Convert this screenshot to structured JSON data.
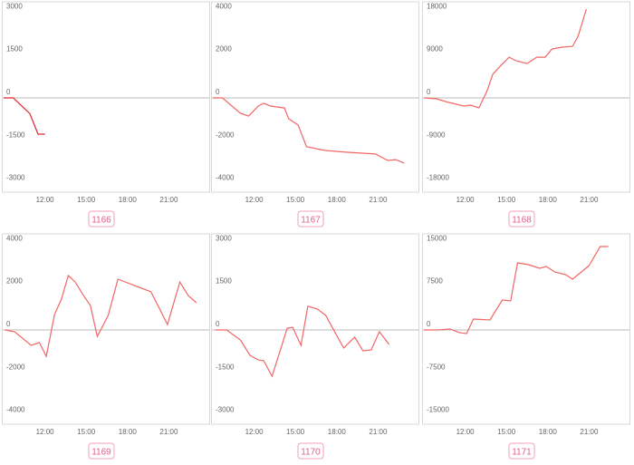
{
  "chart_data": [
    {
      "type": "line",
      "title": "1166",
      "color": "#e0262d",
      "x": [
        9,
        9.7,
        10.9,
        11.5,
        12
      ],
      "values": [
        0,
        0,
        -550,
        -1270,
        -1270
      ],
      "xlim": [
        9,
        24
      ],
      "ylim": [
        -3300,
        3300
      ],
      "xticks": [
        {
          "value": 12,
          "label": "12:00"
        },
        {
          "value": 15,
          "label": "15:00"
        },
        {
          "value": 18,
          "label": "18:00"
        },
        {
          "value": 21,
          "label": "21:00"
        }
      ],
      "yticks": [
        3000,
        1500,
        0,
        -1500,
        -3000
      ],
      "zero_line": true
    },
    {
      "type": "line",
      "title": "1167",
      "color": "#f26666",
      "x": [
        9,
        9.7,
        11,
        11.6,
        12.3,
        12.7,
        13.2,
        14.2,
        14.5,
        15.2,
        15.8,
        17.1,
        18.8,
        20.8,
        21.7,
        22.3,
        22.9
      ],
      "values": [
        0,
        0,
        -720,
        -850,
        -380,
        -250,
        -380,
        -470,
        -970,
        -1270,
        -2280,
        -2450,
        -2540,
        -2620,
        -2920,
        -2880,
        -3050
      ],
      "xlim": [
        9,
        24
      ],
      "ylim": [
        -4400,
        4400
      ],
      "xticks": [
        {
          "value": 12,
          "label": "12:00"
        },
        {
          "value": 15,
          "label": "15:00"
        },
        {
          "value": 18,
          "label": "18:00"
        },
        {
          "value": 21,
          "label": "21:00"
        }
      ],
      "yticks": [
        4000,
        2000,
        0,
        -2000,
        -4000
      ],
      "zero_line": true
    },
    {
      "type": "line",
      "title": "1168",
      "color": "#f26666",
      "x": [
        9,
        9.9,
        10.8,
        11.9,
        12.4,
        13,
        13.6,
        14,
        14.6,
        15.2,
        15.7,
        16.5,
        17.2,
        17.8,
        18.3,
        19,
        19.8,
        20.2,
        20.8
      ],
      "values": [
        0,
        -190,
        -950,
        -1710,
        -1520,
        -2090,
        1520,
        4940,
        6840,
        8550,
        7790,
        7220,
        8550,
        8550,
        10260,
        10640,
        10830,
        12920,
        18620
      ],
      "xlim": [
        9,
        24
      ],
      "ylim": [
        -19800,
        19800
      ],
      "xticks": [
        {
          "value": 12,
          "label": "12:00"
        },
        {
          "value": 15,
          "label": "15:00"
        },
        {
          "value": 18,
          "label": "18:00"
        },
        {
          "value": 21,
          "label": "21:00"
        }
      ],
      "yticks": [
        18000,
        9000,
        0,
        -9000,
        -18000
      ],
      "zero_line": true
    },
    {
      "type": "line",
      "title": "1169",
      "color": "#f26666",
      "x": [
        9.1,
        9.8,
        11,
        11.6,
        12.1,
        12.7,
        13.2,
        13.7,
        14.2,
        14.8,
        15.3,
        15.8,
        16.6,
        17.3,
        19.7,
        20.3,
        20.9,
        21.8,
        22.4,
        23
      ],
      "values": [
        0,
        -85,
        -720,
        -590,
        -1230,
        720,
        1440,
        2540,
        2240,
        1610,
        1140,
        -300,
        680,
        2370,
        1780,
        1020,
        250,
        2240,
        1610,
        1270
      ],
      "xlim": [
        9,
        24
      ],
      "ylim": [
        -4400,
        4400
      ],
      "xticks": [
        {
          "value": 12,
          "label": "12:00"
        },
        {
          "value": 15,
          "label": "15:00"
        },
        {
          "value": 18,
          "label": "18:00"
        },
        {
          "value": 21,
          "label": "21:00"
        }
      ],
      "yticks": [
        4000,
        2000,
        0,
        -2000,
        -4000
      ],
      "zero_line": true
    },
    {
      "type": "line",
      "title": "1170",
      "color": "#f26666",
      "x": [
        9.2,
        10,
        11,
        11.7,
        12.3,
        12.7,
        13.3,
        14.4,
        14.8,
        15.4,
        15.9,
        16.6,
        17.2,
        18.5,
        19.3,
        19.9,
        20.5,
        21.1,
        21.8
      ],
      "values": [
        0,
        0,
        -350,
        -890,
        -1050,
        -1080,
        -1620,
        60,
        90,
        -540,
        830,
        730,
        510,
        -630,
        -250,
        -730,
        -700,
        -60,
        -510
      ],
      "xlim": [
        9,
        24
      ],
      "ylim": [
        -3300,
        3300
      ],
      "xticks": [
        {
          "value": 12,
          "label": "12:00"
        },
        {
          "value": 15,
          "label": "15:00"
        },
        {
          "value": 18,
          "label": "18:00"
        },
        {
          "value": 21,
          "label": "21:00"
        }
      ],
      "yticks": [
        3000,
        1500,
        0,
        -1500,
        -3000
      ],
      "zero_line": true
    },
    {
      "type": "line",
      "title": "1171",
      "color": "#f26666",
      "x": [
        9,
        10,
        10.9,
        11.6,
        12.1,
        12.6,
        13.8,
        14.7,
        15.3,
        15.8,
        16.6,
        17.4,
        17.9,
        18.5,
        19.3,
        19.8,
        21,
        21.8,
        22.4
      ],
      "values": [
        0,
        0,
        160,
        -480,
        -630,
        1900,
        1750,
        5240,
        5080,
        11740,
        11430,
        10790,
        11110,
        10160,
        9680,
        8890,
        11270,
        14600,
        14600
      ],
      "xlim": [
        9,
        24
      ],
      "ylim": [
        -16500,
        16500
      ],
      "xticks": [
        {
          "value": 12,
          "label": "12:00"
        },
        {
          "value": 15,
          "label": "15:00"
        },
        {
          "value": 18,
          "label": "18:00"
        },
        {
          "value": 21,
          "label": "21:00"
        }
      ],
      "yticks": [
        15000,
        7500,
        0,
        -7500,
        -15000
      ],
      "zero_line": true
    }
  ]
}
